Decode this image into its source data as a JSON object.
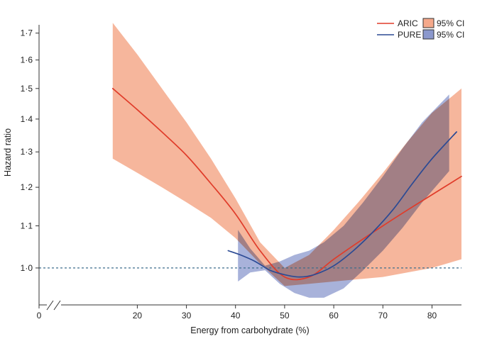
{
  "chart_data": {
    "type": "line",
    "title": "",
    "xlabel": "Energy from carbohydrate (%)",
    "ylabel": "Hazard ratio",
    "xlim": [
      0,
      86
    ],
    "x_axis_break": true,
    "x_ticks": [
      0,
      20,
      30,
      40,
      50,
      60,
      70,
      80
    ],
    "ylim": [
      0.92,
      1.78
    ],
    "y_scale": "log",
    "y_ticks": [
      1.0,
      1.1,
      1.2,
      1.3,
      1.4,
      1.5,
      1.6,
      1.7
    ],
    "y_tick_labels": [
      "1·0",
      "1·1",
      "1·2",
      "1·3",
      "1·4",
      "1·5",
      "1·6",
      "1·7"
    ],
    "reference_line": {
      "y": 1.0,
      "style": "dashed",
      "color": "#3d6e8c"
    },
    "legend": [
      {
        "label": "ARIC",
        "kind": "line",
        "color": "#e03c2a"
      },
      {
        "label": "95% CI",
        "kind": "band",
        "color": "#f5a98b"
      },
      {
        "label": "PURE",
        "kind": "line",
        "color": "#2b4a94"
      },
      {
        "label": "95% CI",
        "kind": "band",
        "color": "#8b98cd"
      }
    ],
    "series": [
      {
        "name": "ARIC",
        "color": "#e03c2a",
        "band_color": "#f5a98b",
        "x": [
          15,
          20,
          25,
          30,
          35,
          40,
          45,
          50,
          55,
          60,
          65,
          70,
          75,
          80,
          86
        ],
        "y": [
          1.5,
          1.43,
          1.36,
          1.29,
          1.21,
          1.13,
          1.04,
          0.98,
          0.98,
          1.02,
          1.06,
          1.1,
          1.14,
          1.18,
          1.23
        ],
        "lower": [
          1.28,
          1.24,
          1.2,
          1.16,
          1.12,
          1.07,
          1.01,
          0.96,
          0.965,
          0.97,
          0.975,
          0.98,
          0.99,
          1.0,
          1.02
        ],
        "upper": [
          1.74,
          1.62,
          1.5,
          1.39,
          1.28,
          1.17,
          1.06,
          1.0,
          1.03,
          1.09,
          1.16,
          1.24,
          1.33,
          1.42,
          1.5
        ]
      },
      {
        "name": "PURE",
        "color": "#2b4a94",
        "band_color": "#8b98cd",
        "x": [
          38.5,
          41,
          44,
          47,
          50,
          53,
          56,
          60,
          64,
          68,
          72,
          76,
          80,
          85
        ],
        "y": [
          1.04,
          1.03,
          1.015,
          0.995,
          0.985,
          0.98,
          0.985,
          1.005,
          1.04,
          1.085,
          1.14,
          1.21,
          1.28,
          1.36
        ],
        "lower": [
          null,
          0.97,
          0.99,
          0.99,
          0.955,
          0.94,
          0.935,
          0.945,
          0.975,
          1.015,
          1.065,
          1.125,
          1.19,
          null
        ],
        "upper": [
          null,
          1.09,
          1.04,
          1.005,
          1.015,
          1.025,
          1.035,
          1.07,
          1.11,
          1.16,
          1.22,
          1.3,
          1.4,
          null
        ],
        "band_x": [
          40.5,
          43,
          46,
          49,
          52,
          55,
          58,
          62,
          66,
          70,
          74,
          78,
          83.5
        ],
        "band_lower": [
          0.97,
          0.99,
          0.995,
          0.965,
          0.945,
          0.935,
          0.935,
          0.955,
          0.995,
          1.04,
          1.095,
          1.16,
          1.245
        ],
        "band_upper": [
          1.09,
          1.045,
          1.005,
          1.015,
          1.03,
          1.04,
          1.06,
          1.1,
          1.16,
          1.23,
          1.31,
          1.39,
          1.48
        ]
      }
    ]
  }
}
